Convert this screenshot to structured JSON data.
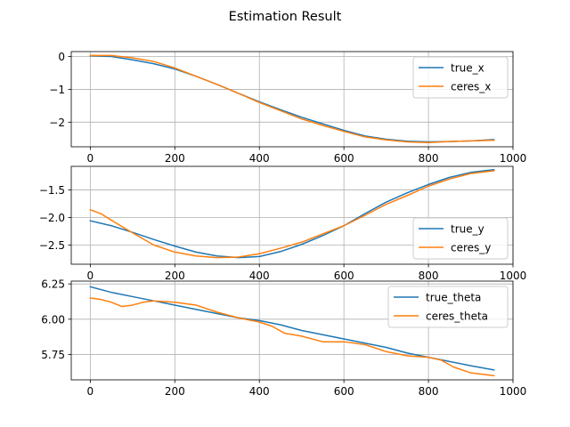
{
  "figure": {
    "title": "Estimation Result"
  },
  "chart_data": [
    {
      "type": "line",
      "title": "",
      "xlabel": "",
      "ylabel": "",
      "xlim": [
        -45,
        1000
      ],
      "ylim": [
        -2.75,
        0.15
      ],
      "xticks": [
        0,
        200,
        400,
        600,
        800,
        1000
      ],
      "yticks": [
        0,
        -1,
        -2
      ],
      "ytick_labels": [
        "0",
        "−1",
        "−2"
      ],
      "grid": true,
      "legend_position": "upper right",
      "series": [
        {
          "name": "true_x",
          "color": "#1f77b4",
          "x": [
            0,
            50,
            100,
            150,
            200,
            250,
            300,
            350,
            400,
            450,
            500,
            550,
            600,
            650,
            700,
            750,
            800,
            850,
            900,
            955
          ],
          "y": [
            0.02,
            0.0,
            -0.1,
            -0.22,
            -0.38,
            -0.6,
            -0.85,
            -1.12,
            -1.38,
            -1.62,
            -1.85,
            -2.05,
            -2.25,
            -2.42,
            -2.52,
            -2.58,
            -2.6,
            -2.59,
            -2.57,
            -2.53
          ]
        },
        {
          "name": "ceres_x",
          "color": "#ff7f0e",
          "x": [
            0,
            50,
            100,
            150,
            200,
            250,
            300,
            350,
            400,
            450,
            500,
            550,
            600,
            650,
            700,
            750,
            800,
            850,
            900,
            955
          ],
          "y": [
            0.03,
            0.03,
            -0.04,
            -0.15,
            -0.35,
            -0.6,
            -0.85,
            -1.12,
            -1.4,
            -1.65,
            -1.9,
            -2.1,
            -2.28,
            -2.45,
            -2.54,
            -2.6,
            -2.62,
            -2.59,
            -2.57,
            -2.55
          ]
        }
      ]
    },
    {
      "type": "line",
      "title": "",
      "xlabel": "",
      "ylabel": "",
      "xlim": [
        -45,
        1000
      ],
      "ylim": [
        -2.85,
        -1.07
      ],
      "xticks": [
        0,
        200,
        400,
        600,
        800,
        1000
      ],
      "yticks": [
        -1.5,
        -2.0,
        -2.5
      ],
      "ytick_labels": [
        "−1.5",
        "−2.0",
        "−2.5"
      ],
      "grid": true,
      "legend_position": "lower right",
      "series": [
        {
          "name": "true_y",
          "color": "#1f77b4",
          "x": [
            0,
            50,
            100,
            150,
            200,
            250,
            300,
            350,
            400,
            450,
            500,
            550,
            600,
            650,
            700,
            750,
            800,
            850,
            900,
            955
          ],
          "y": [
            -2.06,
            -2.15,
            -2.27,
            -2.4,
            -2.52,
            -2.63,
            -2.7,
            -2.73,
            -2.71,
            -2.62,
            -2.49,
            -2.33,
            -2.15,
            -1.93,
            -1.72,
            -1.55,
            -1.4,
            -1.27,
            -1.18,
            -1.13
          ]
        },
        {
          "name": "ceres_y",
          "color": "#ff7f0e",
          "x": [
            0,
            25,
            50,
            100,
            150,
            200,
            250,
            300,
            350,
            400,
            450,
            500,
            550,
            600,
            650,
            700,
            750,
            800,
            850,
            900,
            955
          ],
          "y": [
            -1.86,
            -1.93,
            -2.05,
            -2.28,
            -2.5,
            -2.63,
            -2.7,
            -2.73,
            -2.72,
            -2.66,
            -2.56,
            -2.45,
            -2.3,
            -2.15,
            -1.96,
            -1.76,
            -1.6,
            -1.43,
            -1.3,
            -1.2,
            -1.15
          ]
        }
      ]
    },
    {
      "type": "line",
      "title": "",
      "xlabel": "",
      "ylabel": "",
      "xlim": [
        -45,
        1000
      ],
      "ylim": [
        5.57,
        6.27
      ],
      "xticks": [
        0,
        200,
        400,
        600,
        800,
        1000
      ],
      "yticks": [
        6.25,
        6.0,
        5.75
      ],
      "ytick_labels": [
        "6.25",
        "6.00",
        "5.75"
      ],
      "grid": true,
      "legend_position": "upper right",
      "series": [
        {
          "name": "true_theta",
          "color": "#1f77b4",
          "x": [
            0,
            50,
            100,
            150,
            200,
            250,
            300,
            350,
            400,
            450,
            500,
            550,
            600,
            650,
            700,
            750,
            800,
            850,
            900,
            955
          ],
          "y": [
            6.23,
            6.19,
            6.16,
            6.13,
            6.1,
            6.07,
            6.04,
            6.01,
            5.99,
            5.96,
            5.92,
            5.89,
            5.86,
            5.83,
            5.8,
            5.76,
            5.73,
            5.7,
            5.67,
            5.64
          ]
        },
        {
          "name": "ceres_theta",
          "color": "#ff7f0e",
          "x": [
            0,
            25,
            50,
            75,
            100,
            125,
            150,
            200,
            250,
            300,
            350,
            400,
            430,
            460,
            500,
            550,
            600,
            650,
            700,
            750,
            800,
            830,
            860,
            900,
            955
          ],
          "y": [
            6.15,
            6.14,
            6.12,
            6.09,
            6.1,
            6.12,
            6.13,
            6.12,
            6.1,
            6.05,
            6.01,
            5.98,
            5.95,
            5.9,
            5.88,
            5.84,
            5.84,
            5.82,
            5.77,
            5.74,
            5.73,
            5.71,
            5.66,
            5.62,
            5.6
          ]
        }
      ]
    }
  ]
}
